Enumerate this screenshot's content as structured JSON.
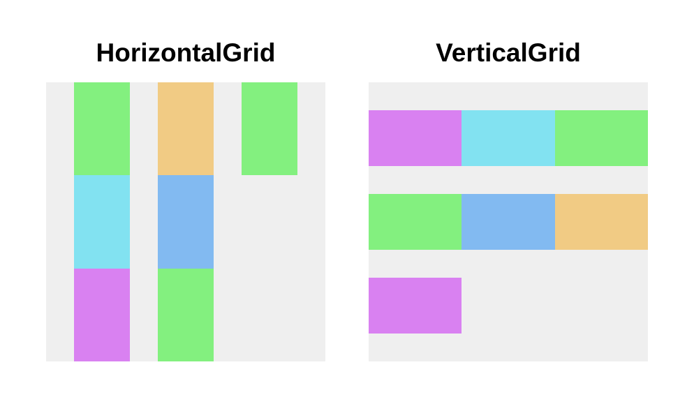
{
  "colors": {
    "background": "#ffffff",
    "panel": "#efefef",
    "green": "#83f07f",
    "orange": "#f1cb84",
    "cyan": "#82e2f1",
    "blue": "#82baf1",
    "purple": "#d981f1"
  },
  "horizontal_grid": {
    "title": "HorizontalGrid",
    "columns": [
      [
        "green",
        "cyan",
        "purple"
      ],
      [
        "orange",
        "blue",
        "green"
      ],
      [
        "green"
      ]
    ]
  },
  "vertical_grid": {
    "title": "VerticalGrid",
    "rows": [
      [
        "purple",
        "cyan",
        "green"
      ],
      [
        "green",
        "blue",
        "orange"
      ],
      [
        "purple"
      ]
    ]
  }
}
